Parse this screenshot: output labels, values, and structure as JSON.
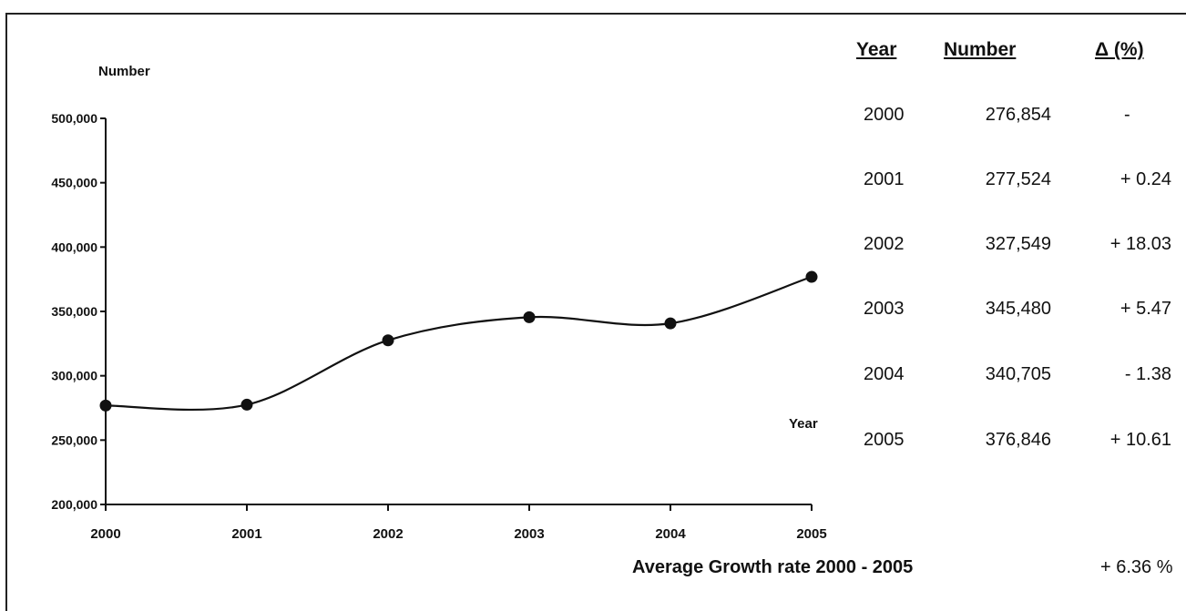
{
  "chart_data": {
    "type": "line",
    "ylabel": "Number",
    "xlabel": "Year",
    "x": [
      "2000",
      "2001",
      "2002",
      "2003",
      "2004",
      "2005"
    ],
    "values": [
      276854,
      277524,
      327549,
      345480,
      340705,
      376846
    ],
    "ylim": [
      200000,
      500000
    ],
    "yticks": [
      500000,
      450000,
      400000,
      350000,
      300000,
      250000,
      200000
    ],
    "ytick_labels": [
      "500,000",
      "450,000",
      "400,000",
      "350,000",
      "300,000",
      "250,000",
      "200,000"
    ],
    "grid": false,
    "smooth": true,
    "line_color": "#111111"
  },
  "table": {
    "headers": [
      "Year",
      "Number",
      "Δ (%)"
    ],
    "rows": [
      [
        "2000",
        "276,854",
        "-"
      ],
      [
        "2001",
        "277,524",
        "+ 0.24"
      ],
      [
        "2002",
        "327,549",
        "+ 18.03"
      ],
      [
        "2003",
        "345,480",
        "+ 5.47"
      ],
      [
        "2004",
        "340,705",
        "- 1.38"
      ],
      [
        "2005",
        "376,846",
        "+ 10.61"
      ]
    ]
  },
  "footer": {
    "label": "Average Growth rate 2000 - 2005",
    "value": "+ 6.36 %"
  }
}
